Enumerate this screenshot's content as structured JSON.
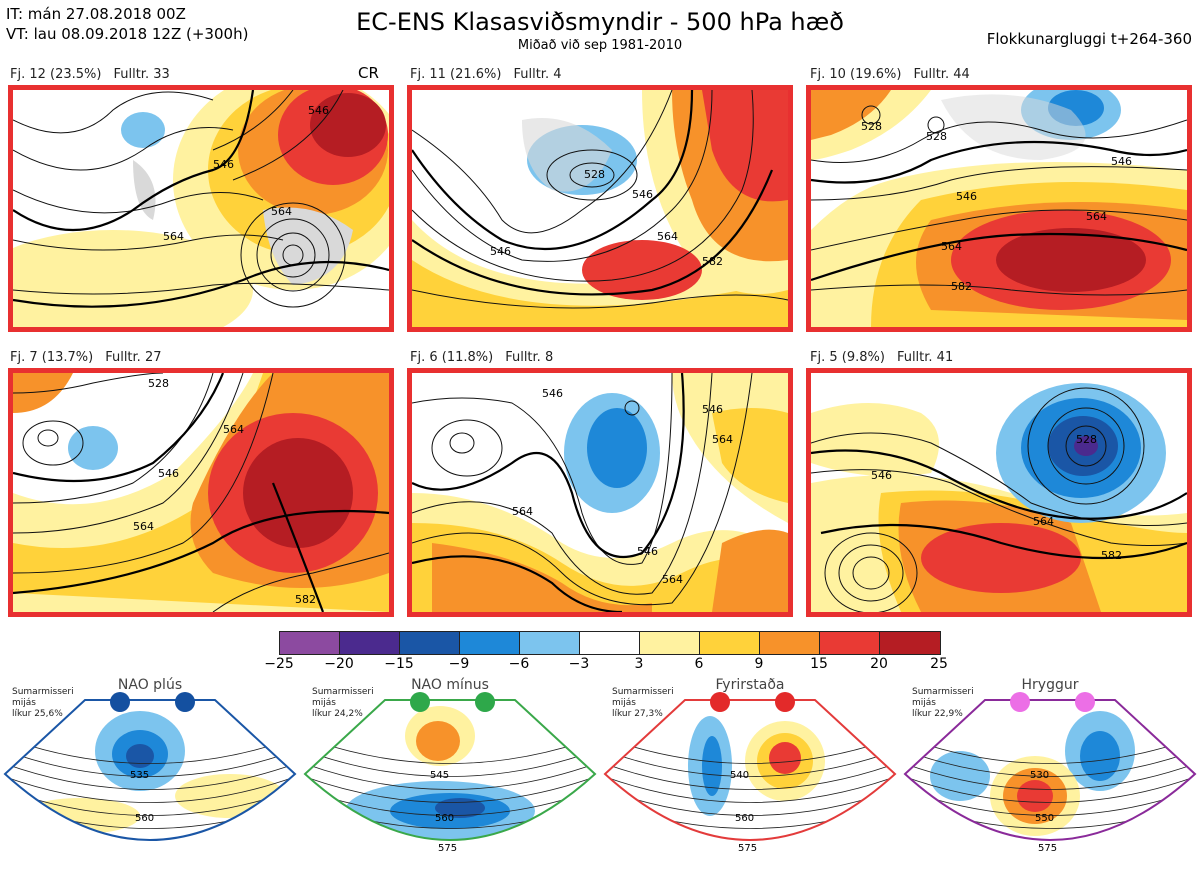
{
  "header": {
    "issue_time": "IT: mán 27.08.2018 00Z",
    "valid_time": "VT: lau 08.09.2018 12Z  (+300h)",
    "title": "EC-ENS Klasasviðsmyndir - 500 hPa hæð",
    "subtitle": "Miðað við sep 1981-2010",
    "window": "Flokkunargluggi t+264-360"
  },
  "cr_label": "CR",
  "panels": [
    {
      "cluster": "Fj. 12 (23.5%)",
      "rep": "Fulltr. 33",
      "contours": [
        "546",
        "564",
        "564",
        "546"
      ]
    },
    {
      "cluster": "Fj. 11 (21.6%)",
      "rep": "Fulltr. 4",
      "contours": [
        "528",
        "546",
        "564",
        "582",
        "546"
      ]
    },
    {
      "cluster": "Fj. 10 (19.6%)",
      "rep": "Fulltr. 44",
      "contours": [
        "528",
        "528",
        "546",
        "564",
        "582",
        "546",
        "564"
      ]
    },
    {
      "cluster": "Fj. 7 (13.7%)",
      "rep": "Fulltr. 27",
      "contours": [
        "528",
        "546",
        "564",
        "564",
        "582"
      ]
    },
    {
      "cluster": "Fj. 6 (11.8%)",
      "rep": "Fulltr. 8",
      "contours": [
        "546",
        "546",
        "564",
        "546",
        "564",
        "564"
      ]
    },
    {
      "cluster": "Fj. 5 (9.8%)",
      "rep": "Fulltr. 41",
      "contours": [
        "528",
        "546",
        "564",
        "582"
      ]
    }
  ],
  "colorbar": {
    "ticks": [
      "−25",
      "−20",
      "−15",
      "−9",
      "−6",
      "−3",
      "3",
      "6",
      "9",
      "15",
      "20",
      "25"
    ],
    "colors": [
      "#8c4aa0",
      "#4b2a8e",
      "#1a56a6",
      "#1e88d8",
      "#7cc4ee",
      "#ffffff",
      "#fff2a0",
      "#ffd23a",
      "#f7922a",
      "#e93a34",
      "#b51d23"
    ]
  },
  "regimes": [
    {
      "name": "NAO plús",
      "note": [
        "Sumarmisseri",
        "mijás",
        "líkur 25,6%"
      ],
      "labels": [
        "535",
        "560"
      ],
      "color": "#1a56a6",
      "dot": "#1450a0"
    },
    {
      "name": "NAO mínus",
      "note": [
        "Sumarmisseri",
        "mijás",
        "líkur 24,2%"
      ],
      "labels": [
        "545",
        "560",
        "575"
      ],
      "color": "#3aa84a",
      "dot": "#2ea84a"
    },
    {
      "name": "Fyrirstaða",
      "note": [
        "Sumarmisseri",
        "mijás",
        "líkur 27,3%"
      ],
      "labels": [
        "540",
        "560",
        "575"
      ],
      "color": "#e33b3b",
      "dot": "#e32a2a"
    },
    {
      "name": "Hryggur",
      "note": [
        "Sumarmisseri",
        "mijás",
        "líkur 22,9%"
      ],
      "labels": [
        "530",
        "550",
        "575"
      ],
      "color": "#8a2a9a",
      "dot": "#ec6fe6"
    }
  ]
}
